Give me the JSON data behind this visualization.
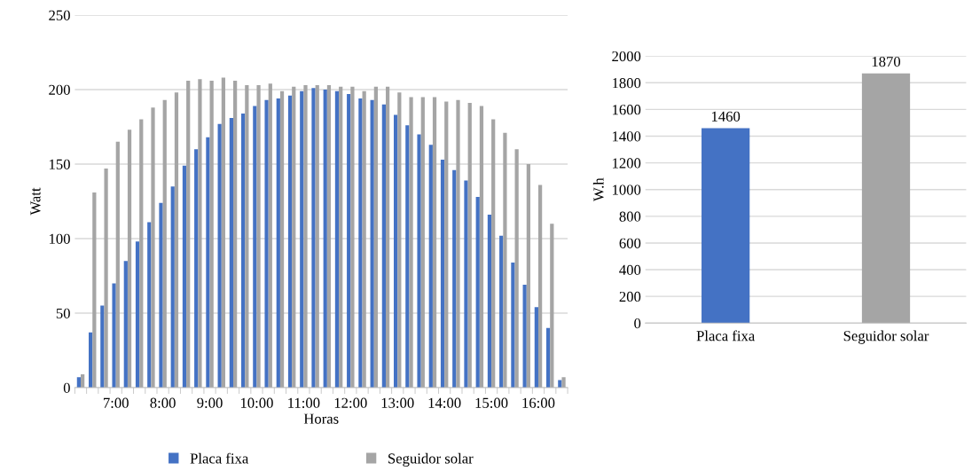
{
  "chart_data": [
    {
      "type": "bar",
      "xlabel": "Horas",
      "ylabel": "Watt",
      "categories": [
        null,
        null,
        null,
        "7:00",
        null,
        null,
        null,
        "8:00",
        null,
        null,
        null,
        "9:00",
        null,
        null,
        null,
        "10:00",
        null,
        null,
        null,
        "11:00",
        null,
        null,
        null,
        "12:00",
        null,
        null,
        null,
        "13:00",
        null,
        null,
        null,
        "14:00",
        null,
        null,
        null,
        "15:00",
        null,
        null,
        null,
        "16:00",
        null,
        null
      ],
      "series": [
        {
          "name": "Placa fixa",
          "color": "#4472c4",
          "values": [
            7,
            37,
            55,
            70,
            85,
            98,
            111,
            124,
            135,
            149,
            160,
            168,
            177,
            181,
            184,
            189,
            193,
            194,
            196,
            199,
            201,
            200,
            199,
            197,
            194,
            193,
            190,
            183,
            176,
            170,
            163,
            153,
            146,
            139,
            128,
            116,
            102,
            84,
            69,
            54,
            40,
            5
          ]
        },
        {
          "name": "Seguidor solar",
          "color": "#a5a5a5",
          "values": [
            9,
            131,
            147,
            165,
            173,
            180,
            188,
            193,
            198,
            206,
            207,
            206,
            208,
            206,
            203,
            203,
            204,
            199,
            202,
            203,
            203,
            203,
            202,
            202,
            199,
            202,
            202,
            198,
            195,
            195,
            195,
            192,
            193,
            191,
            189,
            180,
            171,
            160,
            150,
            136,
            110,
            7
          ]
        }
      ],
      "ylim": [
        0,
        250
      ],
      "yticks": [
        0,
        50,
        100,
        150,
        200,
        250
      ],
      "grid": "y",
      "legend": "bottom"
    },
    {
      "type": "bar",
      "ylabel": "W.h",
      "categories": [
        "Placa fixa",
        "Seguidor solar"
      ],
      "values": [
        1460,
        1870
      ],
      "colors": [
        "#4472c4",
        "#a5a5a5"
      ],
      "ylim": [
        0,
        2000
      ],
      "yticks": [
        0,
        200,
        400,
        600,
        800,
        1000,
        1200,
        1400,
        1600,
        1800,
        2000
      ],
      "grid": "y",
      "data_labels": true
    }
  ]
}
